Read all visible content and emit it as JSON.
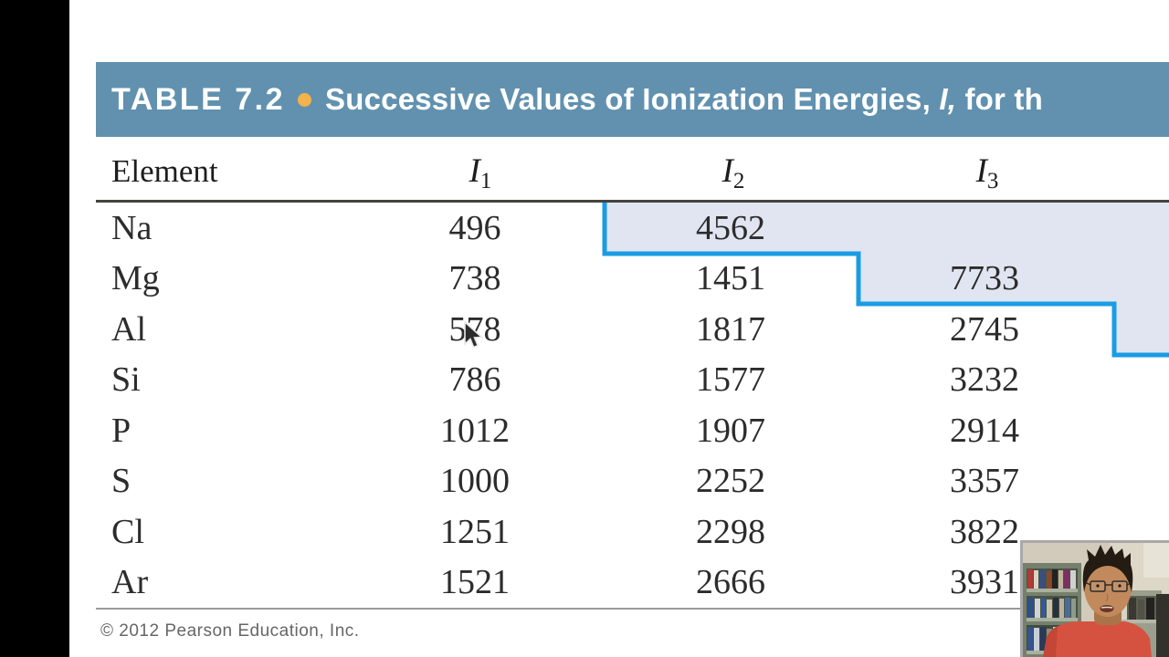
{
  "slide": {
    "table_label": "TABLE 7.2",
    "title_pre": "Successive Values of Ionization Energies, ",
    "title_italic": "I,",
    "title_post": " for th",
    "header_bg": "#6191af",
    "bullet_color": "#f3b24a"
  },
  "table": {
    "col_element": "Element",
    "cols": [
      {
        "base": "I",
        "sub": "1"
      },
      {
        "base": "I",
        "sub": "2"
      },
      {
        "base": "I",
        "sub": "3"
      }
    ],
    "rows": [
      {
        "element": "Na",
        "i1": "496",
        "i2": "4562",
        "i3": ""
      },
      {
        "element": "Mg",
        "i1": "738",
        "i2": "1451",
        "i3": "7733"
      },
      {
        "element": "Al",
        "i1": "578",
        "i2": "1817",
        "i3": "2745"
      },
      {
        "element": "Si",
        "i1": "786",
        "i2": "1577",
        "i3": "3232"
      },
      {
        "element": "P",
        "i1": "1012",
        "i2": "1907",
        "i3": "2914"
      },
      {
        "element": "S",
        "i1": "1000",
        "i2": "2252",
        "i3": "3357"
      },
      {
        "element": "Cl",
        "i1": "1251",
        "i2": "2298",
        "i3": "3822"
      },
      {
        "element": "Ar",
        "i1": "1521",
        "i2": "2666",
        "i3": "3931"
      }
    ],
    "highlight": {
      "fill": "#e0e5f1",
      "border": "#1a9ce4"
    }
  },
  "footer": {
    "copyright": "© 2012 Pearson Education, Inc."
  }
}
